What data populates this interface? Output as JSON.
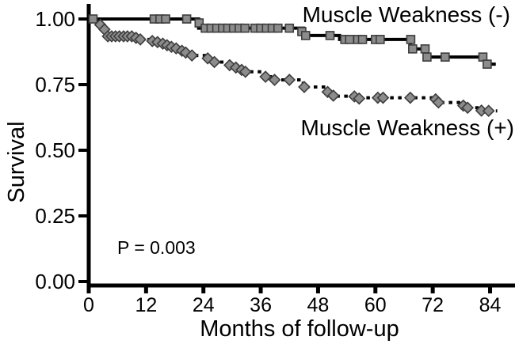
{
  "chart_data": {
    "type": "line",
    "subtype": "kaplan_meier_survival_step",
    "title": "",
    "xlabel": "Months of follow-up",
    "ylabel": "Survival",
    "xlim": [
      0,
      89
    ],
    "ylim": [
      0,
      1.0
    ],
    "xticks": [
      0,
      12,
      24,
      36,
      48,
      60,
      72,
      84
    ],
    "ytick_values": [
      0,
      0.25,
      0.5,
      0.75,
      1.0
    ],
    "ytick_labels": [
      "0.00",
      "0.25",
      "0.50",
      "0.75",
      "1.00"
    ],
    "grid": false,
    "legend_position": "inline-annotations",
    "annotation": "P = 0.003",
    "axis_color": "#000000",
    "series": [
      {
        "name": "Muscle Weakness (-)",
        "line_style": "solid",
        "line_color": "#000000",
        "marker": "square",
        "marker_fill": "#8c8c8c",
        "marker_stroke": "#3d3d3d",
        "steps": [
          [
            0,
            1.0
          ],
          [
            23,
            0.965
          ],
          [
            45,
            0.937
          ],
          [
            52.5,
            0.922
          ],
          [
            67.3,
            0.886
          ],
          [
            70.5,
            0.855
          ],
          [
            82.8,
            0.828
          ]
        ],
        "end_month": 85.2,
        "censor_marks": [
          [
            0.9,
            1.0
          ],
          [
            13.7,
            1.0
          ],
          [
            14.9,
            1.0
          ],
          [
            16.1,
            1.0
          ],
          [
            20.5,
            1.0
          ],
          [
            23.1,
            0.985
          ],
          [
            24.4,
            0.965
          ],
          [
            25.6,
            0.965
          ],
          [
            26.8,
            0.965
          ],
          [
            28.0,
            0.965
          ],
          [
            29.1,
            0.965
          ],
          [
            30.3,
            0.965
          ],
          [
            31.5,
            0.965
          ],
          [
            32.7,
            0.965
          ],
          [
            34.8,
            0.965
          ],
          [
            36.0,
            0.965
          ],
          [
            37.2,
            0.965
          ],
          [
            38.4,
            0.965
          ],
          [
            39.6,
            0.965
          ],
          [
            42.0,
            0.965
          ],
          [
            44.6,
            0.952
          ],
          [
            45.4,
            0.937
          ],
          [
            50.5,
            0.937
          ],
          [
            53.6,
            0.922
          ],
          [
            54.6,
            0.922
          ],
          [
            56.3,
            0.922
          ],
          [
            57.3,
            0.922
          ],
          [
            60.0,
            0.922
          ],
          [
            61.0,
            0.922
          ],
          [
            67.4,
            0.922
          ],
          [
            67.8,
            0.886
          ],
          [
            70.4,
            0.886
          ],
          [
            70.8,
            0.855
          ],
          [
            74.6,
            0.855
          ],
          [
            82.5,
            0.855
          ],
          [
            83.4,
            0.828
          ]
        ]
      },
      {
        "name": "Muscle Weakness (+)",
        "line_style": "dotted",
        "line_color": "#000000",
        "marker": "diamond",
        "marker_fill": "#8c8c8c",
        "marker_stroke": "#3d3d3d",
        "steps": [
          [
            0,
            1.0
          ],
          [
            1.9,
            0.978
          ],
          [
            3.0,
            0.96
          ],
          [
            3.9,
            0.934
          ],
          [
            9.6,
            0.928
          ],
          [
            10.5,
            0.922
          ],
          [
            13.0,
            0.916
          ],
          [
            15.2,
            0.906
          ],
          [
            16.1,
            0.9
          ],
          [
            17.0,
            0.894
          ],
          [
            18.0,
            0.888
          ],
          [
            19.2,
            0.879
          ],
          [
            20.1,
            0.872
          ],
          [
            21.3,
            0.861
          ],
          [
            24.6,
            0.85
          ],
          [
            26.1,
            0.836
          ],
          [
            29.2,
            0.824
          ],
          [
            30.5,
            0.815
          ],
          [
            31.7,
            0.806
          ],
          [
            32.6,
            0.799
          ],
          [
            36.8,
            0.78
          ],
          [
            38.7,
            0.768
          ],
          [
            44.9,
            0.741
          ],
          [
            49.8,
            0.722
          ],
          [
            51.0,
            0.706
          ],
          [
            55.3,
            0.7
          ],
          [
            72.9,
            0.682
          ],
          [
            78.1,
            0.662
          ],
          [
            82.0,
            0.65
          ]
        ],
        "end_month": 85.5,
        "censor_marks": [
          [
            2.4,
            0.978
          ],
          [
            3.3,
            0.96
          ],
          [
            4.0,
            0.934
          ],
          [
            4.8,
            0.934
          ],
          [
            5.6,
            0.934
          ],
          [
            6.4,
            0.934
          ],
          [
            7.3,
            0.934
          ],
          [
            8.1,
            0.934
          ],
          [
            9.0,
            0.934
          ],
          [
            9.9,
            0.928
          ],
          [
            10.8,
            0.922
          ],
          [
            13.3,
            0.916
          ],
          [
            14.4,
            0.912
          ],
          [
            15.5,
            0.906
          ],
          [
            16.4,
            0.9
          ],
          [
            17.3,
            0.894
          ],
          [
            18.3,
            0.888
          ],
          [
            19.5,
            0.879
          ],
          [
            20.3,
            0.872
          ],
          [
            21.6,
            0.861
          ],
          [
            24.9,
            0.85
          ],
          [
            26.3,
            0.836
          ],
          [
            29.5,
            0.824
          ],
          [
            30.8,
            0.815
          ],
          [
            32.0,
            0.806
          ],
          [
            32.8,
            0.799
          ],
          [
            37.0,
            0.78
          ],
          [
            38.9,
            0.768
          ],
          [
            42.0,
            0.768
          ],
          [
            45.1,
            0.741
          ],
          [
            50.0,
            0.722
          ],
          [
            51.2,
            0.708
          ],
          [
            55.6,
            0.705
          ],
          [
            56.6,
            0.697
          ],
          [
            60.5,
            0.7
          ],
          [
            61.6,
            0.7
          ],
          [
            67.3,
            0.7
          ],
          [
            72.6,
            0.694
          ],
          [
            73.2,
            0.682
          ],
          [
            78.4,
            0.67
          ],
          [
            79.3,
            0.662
          ],
          [
            82.2,
            0.651
          ],
          [
            83.7,
            0.65
          ]
        ]
      }
    ]
  }
}
